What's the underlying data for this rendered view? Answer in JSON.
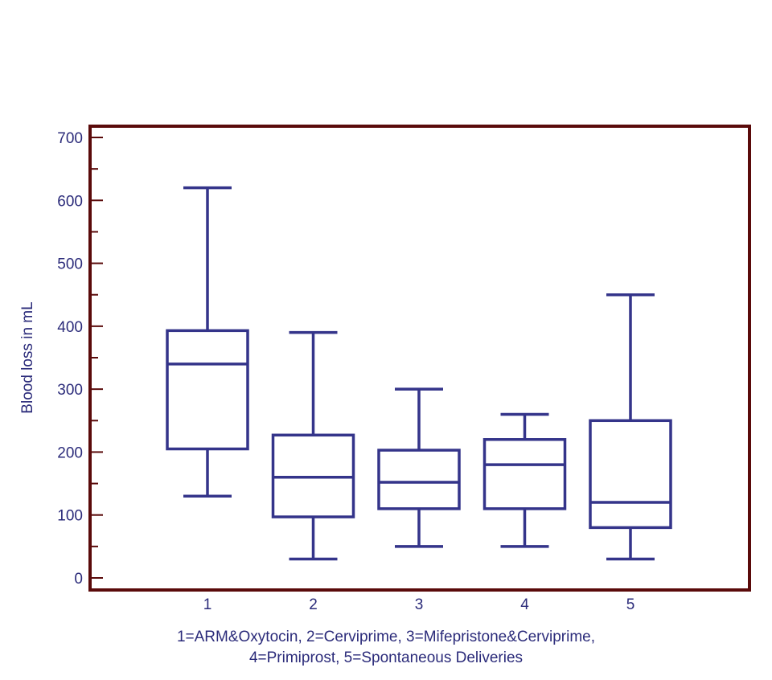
{
  "chart_data": {
    "type": "boxplot",
    "title": "",
    "xlabel": "1=ARM&Oxytocin, 2=Cerviprime, 3=Mifepristone&Cerviprime,",
    "xlabel_line2": "4=Primiprost, 5=Spontaneous Deliveries",
    "ylabel": "Blood loss in mL",
    "ylim": [
      -20,
      720
    ],
    "yticks": [
      "0",
      "100",
      "200",
      "300",
      "400",
      "500",
      "600",
      "700"
    ],
    "yticks_values": [
      0,
      100,
      200,
      300,
      400,
      500,
      600,
      700
    ],
    "yminor_step": 50,
    "categories": [
      "1",
      "2",
      "3",
      "4",
      "5"
    ],
    "grid": false,
    "series": [
      {
        "category": "1",
        "whisker_low": 130,
        "q1": 205,
        "median": 340,
        "q3": 393,
        "whisker_high": 620
      },
      {
        "category": "2",
        "whisker_low": 30,
        "q1": 97,
        "median": 160,
        "q3": 227,
        "whisker_high": 390
      },
      {
        "category": "3",
        "whisker_low": 50,
        "q1": 110,
        "median": 152,
        "q3": 203,
        "whisker_high": 300
      },
      {
        "category": "4",
        "whisker_low": 50,
        "q1": 110,
        "median": 180,
        "q3": 220,
        "whisker_high": 260
      },
      {
        "category": "5",
        "whisker_low": 30,
        "q1": 80,
        "median": 120,
        "q3": 250,
        "whisker_high": 450
      }
    ],
    "colors": {
      "box": "#34348a",
      "frame": "#5a0a0a",
      "text": "#2b2b7a"
    }
  }
}
